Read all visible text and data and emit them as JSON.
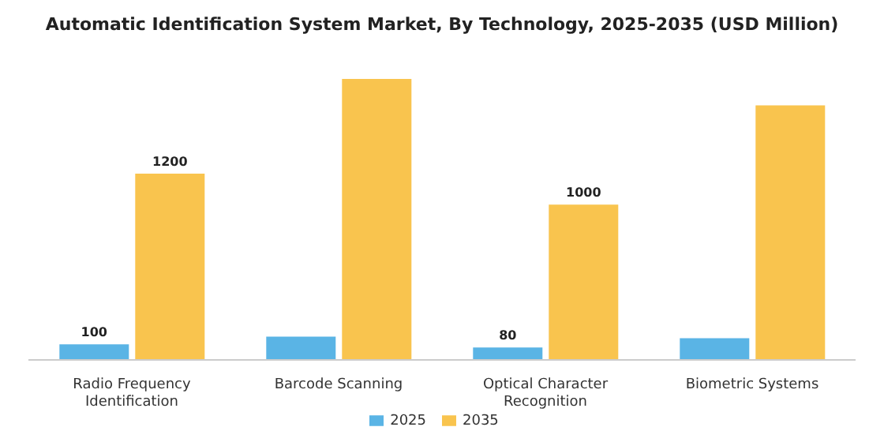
{
  "chart_data": {
    "type": "bar",
    "title": "Automatic Identification System Market, By Technology, 2025-2035 (USD Million)",
    "categories": [
      "Radio Frequency Identification",
      "Barcode Scanning",
      "Optical Character Recognition",
      "Biometric Systems"
    ],
    "series": [
      {
        "name": "2025",
        "color": "#5ab4e5",
        "values": [
          100,
          150,
          80,
          140
        ],
        "value_labels": [
          "100",
          null,
          "80",
          null
        ]
      },
      {
        "name": "2035",
        "color": "#f9c44e",
        "values": [
          1200,
          1810,
          1000,
          1640
        ],
        "value_labels": [
          "1200",
          null,
          "1000",
          null
        ]
      }
    ],
    "tick_labels": "x",
    "grid": false,
    "legend": "bottom"
  }
}
